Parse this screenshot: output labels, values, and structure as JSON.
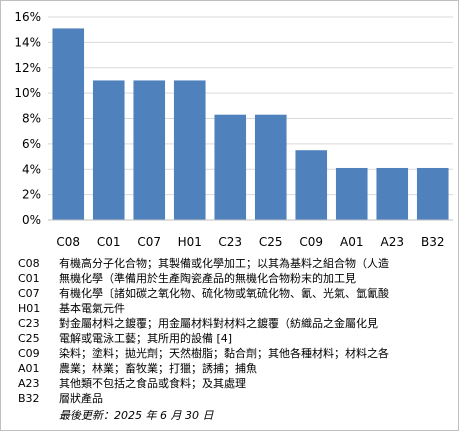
{
  "chart_data": {
    "type": "bar",
    "categories": [
      "C08",
      "C01",
      "C07",
      "H01",
      "C23",
      "C25",
      "C09",
      "A01",
      "A23",
      "B32"
    ],
    "values": [
      15.1,
      11.0,
      11.0,
      11.0,
      8.3,
      8.3,
      5.5,
      4.1,
      4.1,
      4.1
    ],
    "title": "",
    "xlabel": "",
    "ylabel": "",
    "ylim": [
      0,
      16
    ],
    "yticks": [
      "0%",
      "2%",
      "4%",
      "6%",
      "8%",
      "10%",
      "12%",
      "14%",
      "16%"
    ],
    "grid": true,
    "bar_color": "#4f81bd",
    "grid_color": "#d9d9d9"
  },
  "legend": [
    {
      "code": "C08",
      "desc": "有機高分子化合物；其製備或化學加工；以其為基料之組合物（人造"
    },
    {
      "code": "C01",
      "desc": "無機化學（準備用於生產陶瓷產品的無機化合物粉末的加工見"
    },
    {
      "code": "C07",
      "desc": "有機化學〔諸如碳之氧化物、硫化物或氧硫化物、氰、光氣、氫氰酸"
    },
    {
      "code": "H01",
      "desc": "基本電氣元件"
    },
    {
      "code": "C23",
      "desc": "對金屬材料之鍍覆；用金屬材料對材料之鍍覆（紡織品之金屬化見"
    },
    {
      "code": "C25",
      "desc": "電解或電泳工藝；其所用的設備 [4]"
    },
    {
      "code": "C09",
      "desc": "染料；塗料；拋光劑；天然樹脂；黏合劑；其他各種材料；材料之各"
    },
    {
      "code": "A01",
      "desc": "農業；林業；畜牧業；打獵；誘捕；捕魚"
    },
    {
      "code": "A23",
      "desc": "其他類不包括之食品或食料；及其處理"
    },
    {
      "code": "B32",
      "desc": "層狀產品"
    }
  ],
  "footer": {
    "updated": "最後更新：2025 年 6 月 30 日"
  }
}
